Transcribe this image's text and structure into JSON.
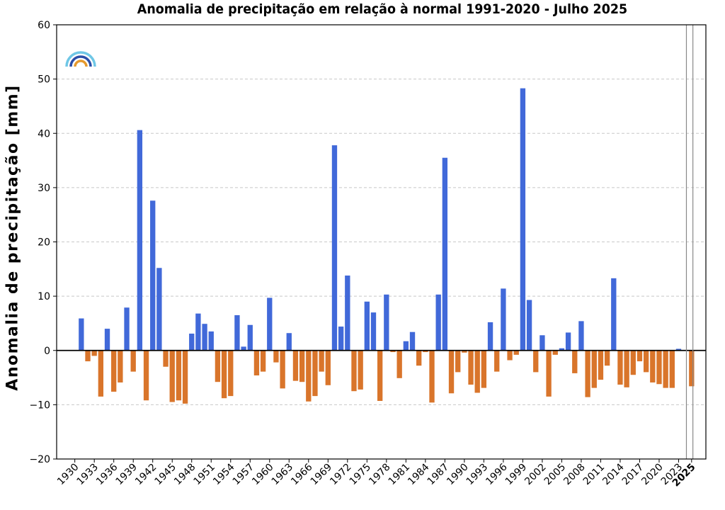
{
  "chart_data": {
    "type": "bar",
    "title": "Anomalia de precipitação em relação à normal 1991-2020 - Julho 2025",
    "ylabel": "Anomalia de precipitação [mm]",
    "xlabel": "",
    "ylim": [
      -20,
      60
    ],
    "yticks": [
      -20,
      -10,
      0,
      10,
      20,
      30,
      40,
      50,
      60
    ],
    "x_tick_labels": [
      "1930",
      "1933",
      "1936",
      "1939",
      "1942",
      "1945",
      "1948",
      "1951",
      "1954",
      "1957",
      "1960",
      "1963",
      "1966",
      "1969",
      "1972",
      "1975",
      "1978",
      "1981",
      "1984",
      "1987",
      "1990",
      "1993",
      "1996",
      "1999",
      "2002",
      "2005",
      "2008",
      "2011",
      "2014",
      "2017",
      "2020",
      "2023",
      "2025"
    ],
    "highlight_label": "2025",
    "grid": "horizontal dashed",
    "positive_color": "#4169d9",
    "negative_color": "#d9752b",
    "years": [
      1931,
      1932,
      1933,
      1934,
      1935,
      1936,
      1937,
      1938,
      1939,
      1940,
      1941,
      1942,
      1943,
      1944,
      1945,
      1946,
      1947,
      1948,
      1949,
      1950,
      1951,
      1952,
      1953,
      1954,
      1955,
      1956,
      1957,
      1958,
      1959,
      1960,
      1961,
      1962,
      1963,
      1964,
      1965,
      1966,
      1967,
      1968,
      1969,
      1970,
      1971,
      1972,
      1973,
      1974,
      1975,
      1976,
      1977,
      1978,
      1979,
      1980,
      1981,
      1982,
      1983,
      1984,
      1985,
      1986,
      1987,
      1988,
      1989,
      1990,
      1991,
      1992,
      1993,
      1994,
      1995,
      1996,
      1997,
      1998,
      1999,
      2000,
      2001,
      2002,
      2003,
      2004,
      2005,
      2006,
      2007,
      2008,
      2009,
      2010,
      2011,
      2012,
      2013,
      2014,
      2015,
      2016,
      2017,
      2018,
      2019,
      2020,
      2021,
      2022,
      2023,
      2025
    ],
    "values": [
      5.9,
      -2.0,
      -1.0,
      -8.5,
      4.0,
      -7.6,
      -5.9,
      7.9,
      -3.9,
      40.6,
      -9.2,
      27.6,
      15.2,
      -3.0,
      -9.5,
      -9.2,
      -9.8,
      3.1,
      6.8,
      4.9,
      3.5,
      -5.8,
      -8.8,
      -8.4,
      6.5,
      0.7,
      4.7,
      -4.6,
      -3.9,
      9.7,
      -2.2,
      -7.0,
      3.2,
      -5.6,
      -5.8,
      -9.4,
      -8.4,
      -3.9,
      -6.4,
      37.8,
      4.4,
      13.8,
      -7.5,
      -7.2,
      9.0,
      7.0,
      -9.3,
      10.3,
      -0.3,
      -5.1,
      1.7,
      3.4,
      -2.8,
      -0.3,
      -9.6,
      10.3,
      35.5,
      -7.9,
      -4.0,
      -0.4,
      -6.3,
      -7.8,
      -6.9,
      5.2,
      -3.9,
      11.4,
      -1.8,
      -0.8,
      48.3,
      9.3,
      -4.0,
      2.8,
      -8.5,
      -0.8,
      0.4,
      3.3,
      -4.2,
      5.4,
      -8.6,
      -6.9,
      -5.4,
      -2.8,
      13.3,
      -6.3,
      -6.8,
      -4.5,
      -2.0,
      -4.0,
      -5.9,
      -6.2,
      -6.9,
      -6.9,
      0.3,
      -6.6
    ]
  }
}
